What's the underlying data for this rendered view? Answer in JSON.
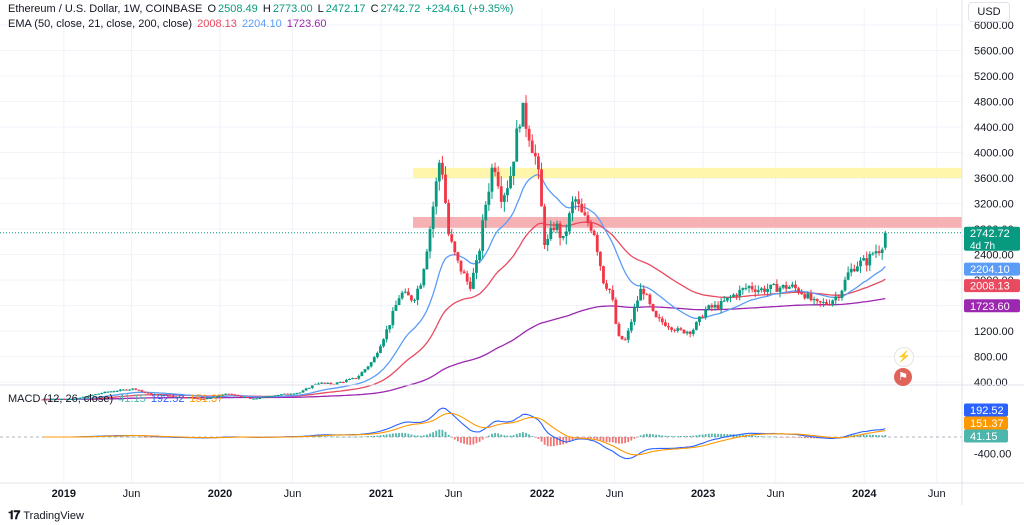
{
  "header": {
    "symbol": "Ethereum / U.S. Dollar, 1W, COINBASE",
    "open_label": "O",
    "open": "2508.49",
    "high_label": "H",
    "high": "2773.00",
    "low_label": "L",
    "low": "2472.17",
    "close_label": "C",
    "close": "2742.72",
    "change": "+234.61 (+9.35%)"
  },
  "ema_legend": {
    "label": "EMA (50, close, 21, close, 200, close)",
    "v1": "2008.13",
    "v2": "2204.10",
    "v3": "1723.60"
  },
  "macd_legend": {
    "label": "MACD (12, 26, close)",
    "v1": "41.15",
    "v2": "192.52",
    "v3": "151.37"
  },
  "currency": "USD",
  "brand": "TradingView",
  "colors": {
    "up": "#089981",
    "down": "#f23645",
    "ema50": "#e84a5f",
    "ema21": "#5b9cf6",
    "ema200": "#9c27b0",
    "macd": "#2962ff",
    "signal": "#ff9800",
    "resistance_yellow": "#fff59d",
    "resistance_red": "#f4a3a8"
  },
  "chart_data": {
    "type": "candlestick",
    "price_axis_ticks": [
      "6000.00",
      "5600.00",
      "5200.00",
      "4800.00",
      "4400.00",
      "4000.00",
      "3600.00",
      "3200.00",
      "2800.00",
      "2400.00",
      "2000.00",
      "1600.00",
      "1200.00",
      "800.00",
      "400.00"
    ],
    "macd_axis_ticks": [
      "-400.00"
    ],
    "x_ticks": [
      "2019",
      "Jun",
      "2020",
      "Jun",
      "2021",
      "Jun",
      "2022",
      "Jun",
      "2023",
      "Jun",
      "2024",
      "Jun"
    ],
    "price_labels": [
      {
        "value": "2742.72",
        "sub": "4d 7h",
        "color": "#089981"
      },
      {
        "value": "2204.10",
        "color": "#5b9cf6"
      },
      {
        "value": "2008.13",
        "color": "#e84a5f"
      },
      {
        "value": "1723.60",
        "color": "#9c27b0"
      }
    ],
    "macd_labels": [
      {
        "value": "192.52",
        "color": "#2962ff"
      },
      {
        "value": "151.37",
        "color": "#ff9800"
      },
      {
        "value": "41.15",
        "color": "#4db6ac"
      }
    ],
    "zones": [
      {
        "name": "resistance-high",
        "from": 3600,
        "to": 3760
      },
      {
        "name": "resistance-low",
        "from": 2820,
        "to": 2990
      }
    ],
    "last_price": 2742.72,
    "anchors": [
      [
        2018.9,
        130
      ],
      [
        2019.1,
        140
      ],
      [
        2019.3,
        250
      ],
      [
        2019.47,
        300
      ],
      [
        2019.55,
        220
      ],
      [
        2019.75,
        170
      ],
      [
        2019.9,
        135
      ],
      [
        2020.05,
        220
      ],
      [
        2020.2,
        135
      ],
      [
        2020.35,
        200
      ],
      [
        2020.5,
        240
      ],
      [
        2020.6,
        390
      ],
      [
        2020.7,
        370
      ],
      [
        2020.85,
        470
      ],
      [
        2020.95,
        740
      ],
      [
        2021.05,
        1300
      ],
      [
        2021.12,
        1800
      ],
      [
        2021.2,
        1700
      ],
      [
        2021.25,
        2000
      ],
      [
        2021.3,
        2750
      ],
      [
        2021.37,
        4000
      ],
      [
        2021.42,
        2700
      ],
      [
        2021.47,
        2300
      ],
      [
        2021.55,
        1900
      ],
      [
        2021.6,
        2300
      ],
      [
        2021.65,
        3200
      ],
      [
        2021.7,
        3900
      ],
      [
        2021.75,
        3300
      ],
      [
        2021.8,
        3600
      ],
      [
        2021.87,
        4700
      ],
      [
        2021.92,
        4300
      ],
      [
        2021.97,
        3800
      ],
      [
        2022.02,
        2500
      ],
      [
        2022.08,
        2900
      ],
      [
        2022.13,
        2600
      ],
      [
        2022.2,
        3300
      ],
      [
        2022.25,
        3000
      ],
      [
        2022.32,
        2800
      ],
      [
        2022.38,
        2000
      ],
      [
        2022.43,
        1800
      ],
      [
        2022.47,
        1100
      ],
      [
        2022.52,
        1050
      ],
      [
        2022.58,
        1600
      ],
      [
        2022.62,
        1900
      ],
      [
        2022.7,
        1400
      ],
      [
        2022.78,
        1300
      ],
      [
        2022.85,
        1200
      ],
      [
        2022.93,
        1200
      ],
      [
        2023.02,
        1550
      ],
      [
        2023.1,
        1600
      ],
      [
        2023.18,
        1750
      ],
      [
        2023.28,
        1900
      ],
      [
        2023.35,
        1850
      ],
      [
        2023.45,
        1880
      ],
      [
        2023.55,
        1900
      ],
      [
        2023.62,
        1800
      ],
      [
        2023.7,
        1620
      ],
      [
        2023.78,
        1650
      ],
      [
        2023.85,
        1800
      ],
      [
        2023.9,
        2100
      ],
      [
        2023.95,
        2250
      ],
      [
        2024.02,
        2300
      ],
      [
        2024.06,
        2450
      ],
      [
        2024.1,
        2500
      ],
      [
        2024.14,
        2742
      ]
    ]
  }
}
